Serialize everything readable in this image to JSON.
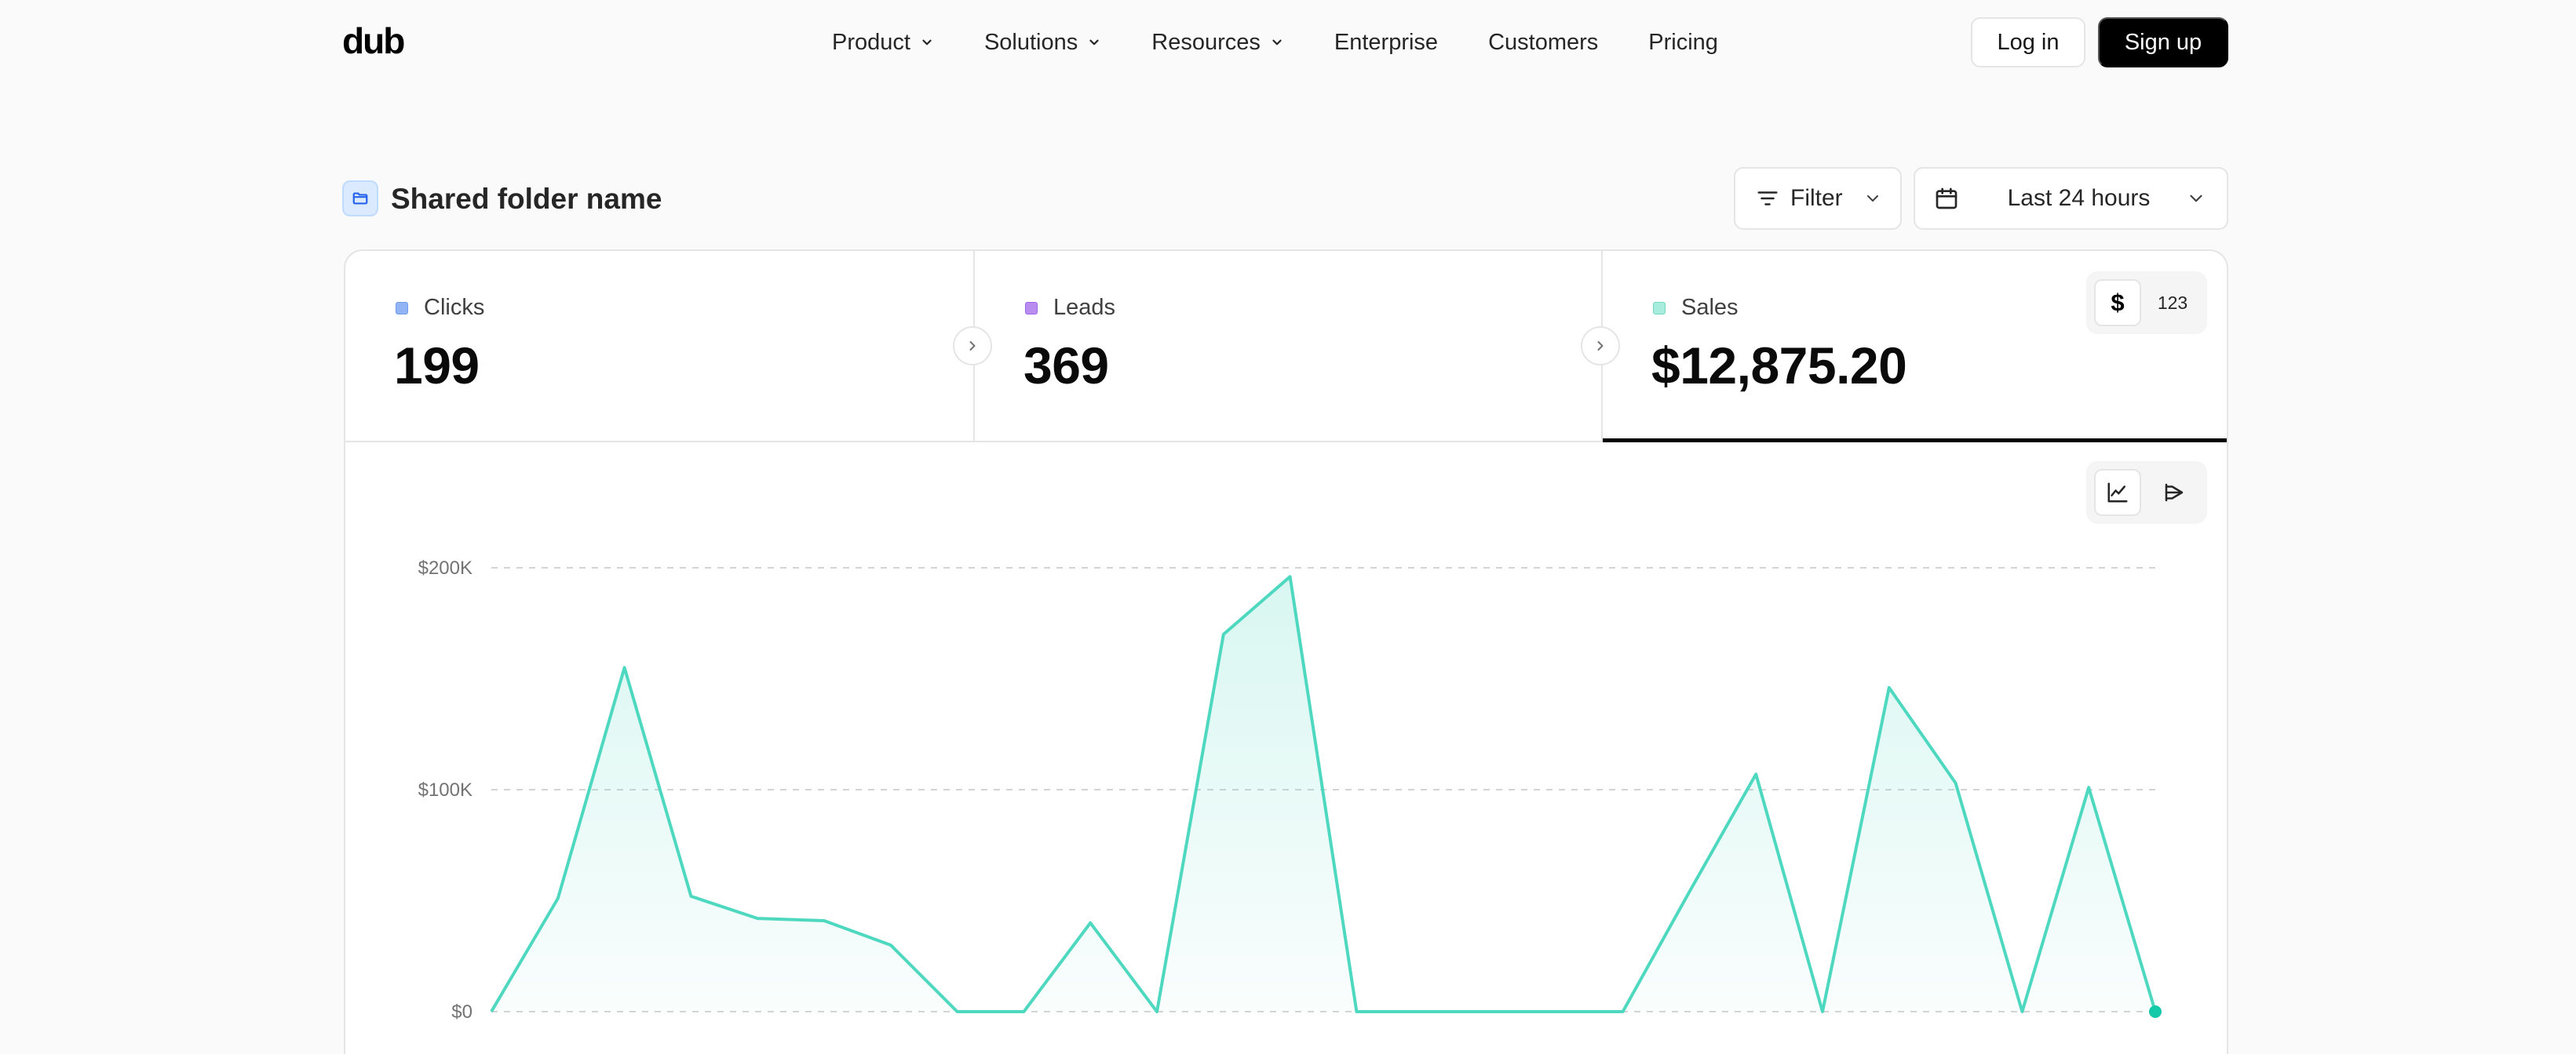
{
  "brand": {
    "logo_text": "dub"
  },
  "nav": {
    "links": [
      {
        "label": "Product",
        "has_dropdown": true
      },
      {
        "label": "Solutions",
        "has_dropdown": true
      },
      {
        "label": "Resources",
        "has_dropdown": true
      },
      {
        "label": "Enterprise",
        "has_dropdown": false
      },
      {
        "label": "Customers",
        "has_dropdown": false
      },
      {
        "label": "Pricing",
        "has_dropdown": false
      }
    ],
    "login_label": "Log in",
    "signup_label": "Sign up"
  },
  "header": {
    "folder_icon": "folder-icon",
    "title": "Shared folder name",
    "filter_label": "Filter",
    "date_range": "Last 24 hours"
  },
  "tabs": [
    {
      "label": "Clicks",
      "value": "199",
      "color": "#93b4f4"
    },
    {
      "label": "Leads",
      "value": "369",
      "color": "#b98df0"
    },
    {
      "label": "Sales",
      "value": "$12,875.20",
      "color": "#7fe0cd",
      "active": true
    }
  ],
  "unit_toggle": {
    "currency": "$",
    "count": "123",
    "selected": "currency"
  },
  "view_toggle": {
    "selected": "line-chart-icon",
    "options": [
      "line-chart-icon",
      "funnel-chart-icon"
    ]
  },
  "chart_data": {
    "type": "area",
    "color": "#4fd8c0",
    "ylim": [
      0,
      200000
    ],
    "yticks": [
      {
        "value": 0,
        "label": "$0"
      },
      {
        "value": 100000,
        "label": "$100K"
      },
      {
        "value": 200000,
        "label": "$200K"
      }
    ],
    "grid": true,
    "series": [
      {
        "values": [
          0,
          51000,
          155000,
          52000,
          42000,
          41000,
          30000,
          0,
          0,
          40000,
          0,
          170000,
          196000,
          0,
          0,
          0,
          0,
          0,
          54000,
          107000,
          0,
          146000,
          103000,
          0,
          101000,
          0
        ]
      }
    ]
  }
}
